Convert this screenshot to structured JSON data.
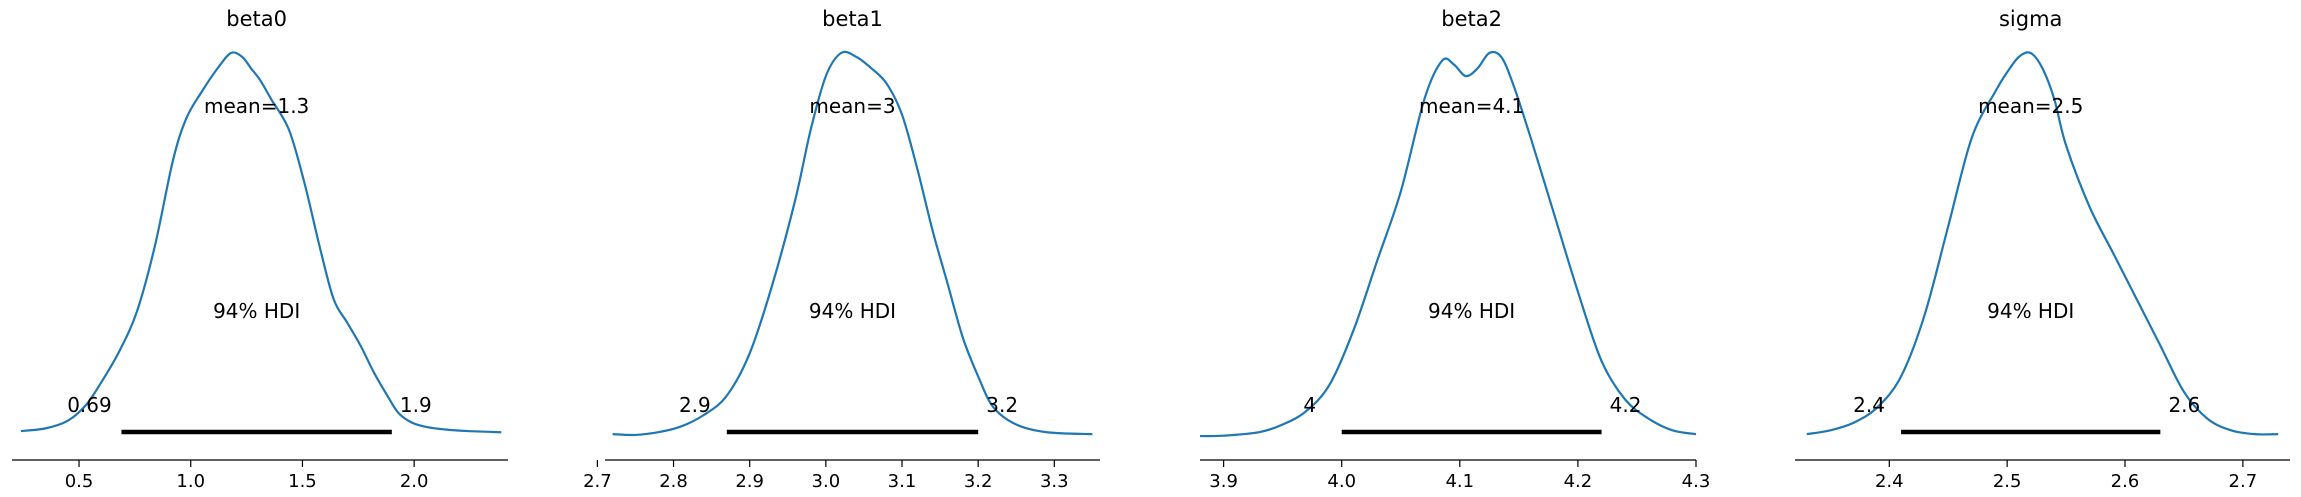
{
  "chart_data": [
    {
      "type": "area",
      "title": "beta0",
      "mean_label": "mean=1.3",
      "hdi_label": "94% HDI",
      "hdi": [
        0.69,
        1.9
      ],
      "hdi_labels": [
        "0.69",
        "1.9"
      ],
      "xlim": [
        0.2,
        2.42
      ],
      "xticks": [
        0.5,
        1.0,
        1.5,
        2.0
      ],
      "xtick_labels": [
        "0.5",
        "1.0",
        "1.5",
        "2.0"
      ],
      "density": {
        "x": [
          0.24,
          0.35,
          0.45,
          0.53,
          0.6,
          0.68,
          0.76,
          0.84,
          0.92,
          0.98,
          1.05,
          1.12,
          1.18,
          1.23,
          1.27,
          1.31,
          1.36,
          1.44,
          1.51,
          1.58,
          1.64,
          1.7,
          1.76,
          1.82,
          1.88,
          1.93,
          1.99,
          2.06,
          2.14,
          2.24,
          2.39
        ],
        "y": [
          0.018,
          0.025,
          0.045,
          0.085,
          0.145,
          0.225,
          0.33,
          0.5,
          0.72,
          0.83,
          0.9,
          0.96,
          1.0,
          0.99,
          0.96,
          0.93,
          0.88,
          0.8,
          0.66,
          0.49,
          0.36,
          0.3,
          0.24,
          0.17,
          0.11,
          0.065,
          0.04,
          0.028,
          0.022,
          0.018,
          0.015
        ]
      }
    },
    {
      "type": "area",
      "title": "beta1",
      "mean_label": "mean=3",
      "hdi_label": "94% HDI",
      "hdi": [
        2.87,
        3.2
      ],
      "hdi_labels": [
        "2.9",
        "3.2"
      ],
      "xlim": [
        2.71,
        3.36
      ],
      "xticks": [
        2.7,
        2.8,
        2.9,
        3.0,
        3.1,
        3.2,
        3.3
      ],
      "xtick_labels": [
        "2.7",
        "2.8",
        "2.9",
        "3.0",
        "3.1",
        "3.2",
        "3.3"
      ],
      "density": {
        "x": [
          2.72,
          2.75,
          2.78,
          2.81,
          2.84,
          2.87,
          2.9,
          2.93,
          2.96,
          2.98,
          3.0,
          3.02,
          3.04,
          3.06,
          3.08,
          3.1,
          3.12,
          3.14,
          3.16,
          3.18,
          3.2,
          3.22,
          3.25,
          3.29,
          3.35
        ],
        "y": [
          0.01,
          0.008,
          0.015,
          0.03,
          0.06,
          0.11,
          0.22,
          0.4,
          0.62,
          0.8,
          0.94,
          1.0,
          0.99,
          0.96,
          0.92,
          0.84,
          0.7,
          0.54,
          0.4,
          0.26,
          0.16,
          0.08,
          0.035,
          0.015,
          0.01
        ]
      }
    },
    {
      "type": "area",
      "title": "beta2",
      "mean_label": "mean=4.1",
      "hdi_label": "94% HDI",
      "hdi": [
        4.0,
        4.22
      ],
      "hdi_labels": [
        "4",
        "4.2"
      ],
      "xlim": [
        3.88,
        4.3
      ],
      "xticks": [
        3.9,
        4.0,
        4.1,
        4.2,
        4.3
      ],
      "xtick_labels": [
        "3.9",
        "4.0",
        "4.1",
        "4.2",
        "4.3"
      ],
      "density": {
        "x": [
          3.88,
          3.9,
          3.93,
          3.95,
          3.97,
          3.99,
          4.01,
          4.03,
          4.05,
          4.07,
          4.085,
          4.095,
          4.105,
          4.115,
          4.125,
          4.135,
          4.145,
          4.16,
          4.18,
          4.2,
          4.22,
          4.24,
          4.26,
          4.28,
          4.3
        ],
        "y": [
          0.005,
          0.006,
          0.015,
          0.035,
          0.07,
          0.14,
          0.28,
          0.46,
          0.64,
          0.88,
          0.98,
          0.97,
          0.94,
          0.96,
          1.0,
          0.99,
          0.92,
          0.78,
          0.58,
          0.38,
          0.2,
          0.1,
          0.05,
          0.02,
          0.01
        ]
      }
    },
    {
      "type": "area",
      "title": "sigma",
      "mean_label": "mean=2.5",
      "hdi_label": "94% HDI",
      "hdi": [
        2.41,
        2.63
      ],
      "hdi_labels": [
        "2.4",
        "2.6"
      ],
      "xlim": [
        2.32,
        2.74
      ],
      "xticks": [
        2.4,
        2.5,
        2.6,
        2.7
      ],
      "xtick_labels": [
        "2.4",
        "2.5",
        "2.6",
        "2.7"
      ],
      "density": {
        "x": [
          2.33,
          2.35,
          2.37,
          2.39,
          2.41,
          2.43,
          2.45,
          2.47,
          2.49,
          2.5,
          2.51,
          2.52,
          2.53,
          2.54,
          2.55,
          2.57,
          2.59,
          2.61,
          2.63,
          2.65,
          2.67,
          2.69,
          2.71,
          2.73
        ],
        "y": [
          0.01,
          0.02,
          0.04,
          0.08,
          0.16,
          0.32,
          0.55,
          0.78,
          0.9,
          0.95,
          0.99,
          1.0,
          0.96,
          0.88,
          0.76,
          0.6,
          0.48,
          0.36,
          0.24,
          0.12,
          0.05,
          0.02,
          0.01,
          0.01
        ]
      }
    }
  ]
}
